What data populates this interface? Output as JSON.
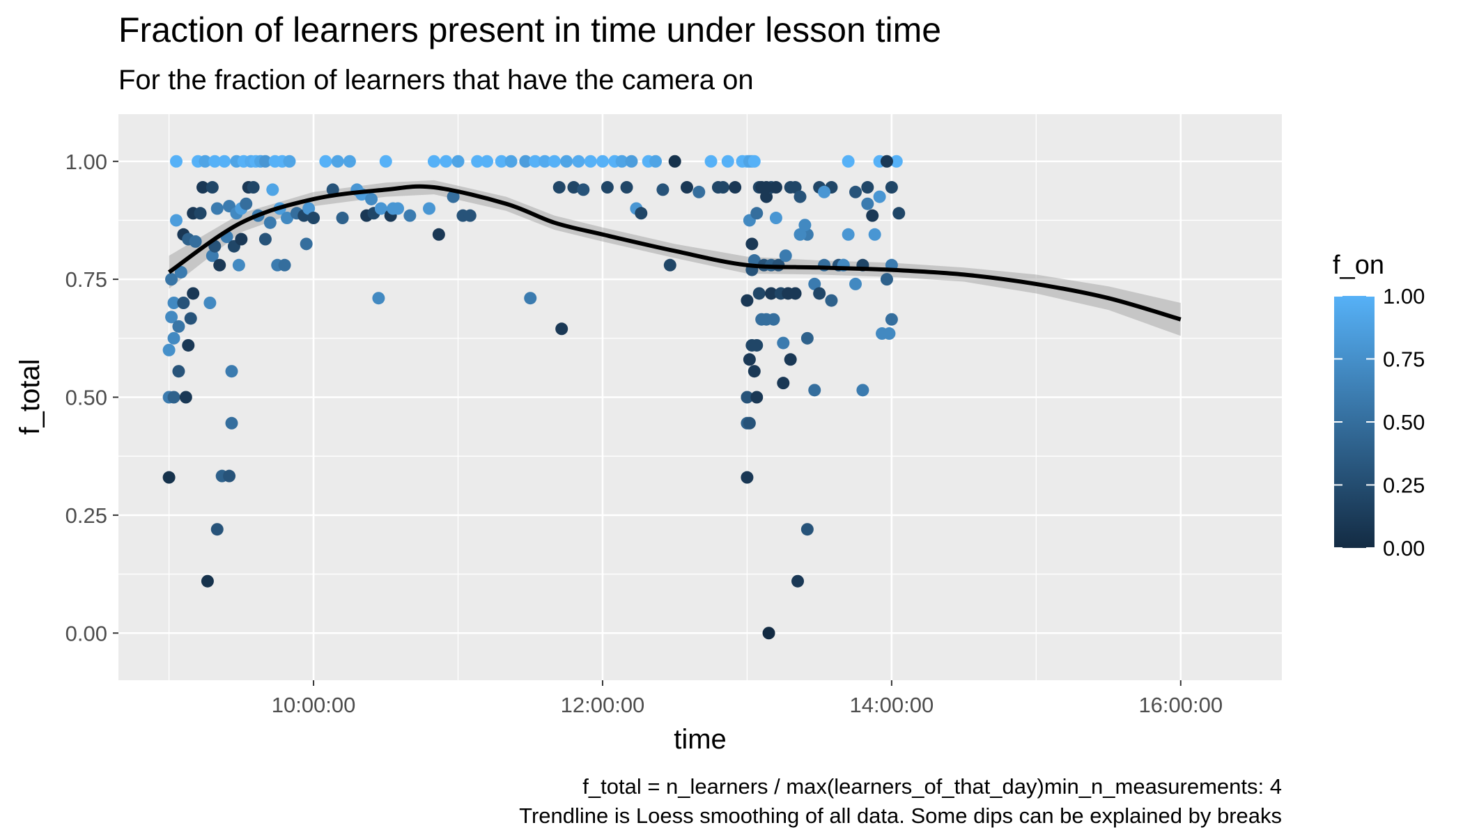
{
  "chart_data": {
    "type": "scatter",
    "title": "Fraction of learners present in time under lesson time",
    "subtitle": "For the fraction of learners that have the camera on",
    "xlabel": "time",
    "ylabel": "f_total",
    "xlim": [
      "08:39:00",
      "16:42:00"
    ],
    "ylim": [
      -0.1,
      1.1
    ],
    "x_ticks": [
      "10:00:00",
      "12:00:00",
      "14:00:00",
      "16:00:00"
    ],
    "y_ticks": [
      "0.00",
      "0.25",
      "0.50",
      "0.75",
      "1.00"
    ],
    "grid": true,
    "legend": {
      "title": "f_on",
      "position": "right",
      "ticks": [
        "0.00",
        "0.25",
        "0.50",
        "0.75",
        "1.00"
      ],
      "color_low": "#132B43",
      "color_high": "#56B1F7"
    },
    "caption": [
      "f_total = n_learners / max(learners_of_that_day)min_n_measurements: 4",
      "Trendline is Loess smoothing of all data. Some dips can be explained by breaks"
    ],
    "trend": {
      "name": "Loess",
      "x": [
        "09:00:00",
        "09:30:00",
        "10:00:00",
        "10:30:00",
        "10:50:00",
        "11:20:00",
        "11:40:00",
        "12:00:00",
        "12:30:00",
        "13:00:00",
        "13:30:00",
        "14:00:00",
        "14:30:00",
        "15:00:00",
        "15:30:00",
        "16:00:00"
      ],
      "y": [
        0.765,
        0.87,
        0.92,
        0.94,
        0.945,
        0.91,
        0.87,
        0.845,
        0.81,
        0.78,
        0.775,
        0.77,
        0.76,
        0.74,
        0.71,
        0.665
      ],
      "band": [
        0.035,
        0.02,
        0.015,
        0.015,
        0.015,
        0.015,
        0.015,
        0.015,
        0.015,
        0.018,
        0.015,
        0.015,
        0.015,
        0.02,
        0.025,
        0.035
      ]
    },
    "points": [
      {
        "x": "09:00:00",
        "y": 0.33,
        "f_on": 0.05
      },
      {
        "x": "09:00:00",
        "y": 0.5,
        "f_on": 0.6
      },
      {
        "x": "09:00:00",
        "y": 0.6,
        "f_on": 0.75
      },
      {
        "x": "09:01:00",
        "y": 0.67,
        "f_on": 0.7
      },
      {
        "x": "09:01:00",
        "y": 0.75,
        "f_on": 0.55
      },
      {
        "x": "09:02:00",
        "y": 0.7,
        "f_on": 0.7
      },
      {
        "x": "09:02:00",
        "y": 0.625,
        "f_on": 0.7
      },
      {
        "x": "09:02:00",
        "y": 0.5,
        "f_on": 0.4
      },
      {
        "x": "09:03:00",
        "y": 1.0,
        "f_on": 1.0
      },
      {
        "x": "09:03:00",
        "y": 0.875,
        "f_on": 0.85
      },
      {
        "x": "09:04:00",
        "y": 0.65,
        "f_on": 0.55
      },
      {
        "x": "09:04:00",
        "y": 0.555,
        "f_on": 0.3
      },
      {
        "x": "09:05:00",
        "y": 0.765,
        "f_on": 0.6
      },
      {
        "x": "09:06:00",
        "y": 0.7,
        "f_on": 0.3
      },
      {
        "x": "09:06:00",
        "y": 0.845,
        "f_on": 0.1
      },
      {
        "x": "09:07:00",
        "y": 0.5,
        "f_on": 0.1
      },
      {
        "x": "09:08:00",
        "y": 0.61,
        "f_on": 0.1
      },
      {
        "x": "09:08:00",
        "y": 0.835,
        "f_on": 0.4
      },
      {
        "x": "09:09:00",
        "y": 0.667,
        "f_on": 0.3
      },
      {
        "x": "09:10:00",
        "y": 0.72,
        "f_on": 0.1
      },
      {
        "x": "09:10:00",
        "y": 0.89,
        "f_on": 0.1
      },
      {
        "x": "09:11:00",
        "y": 0.83,
        "f_on": 0.5
      },
      {
        "x": "09:12:00",
        "y": 1.0,
        "f_on": 1.0
      },
      {
        "x": "09:13:00",
        "y": 0.89,
        "f_on": 0.2
      },
      {
        "x": "09:14:00",
        "y": 0.945,
        "f_on": 0.1
      },
      {
        "x": "09:15:00",
        "y": 1.0,
        "f_on": 0.9
      },
      {
        "x": "09:16:00",
        "y": 0.11,
        "f_on": 0.05
      },
      {
        "x": "09:17:00",
        "y": 0.7,
        "f_on": 0.7
      },
      {
        "x": "09:18:00",
        "y": 0.8,
        "f_on": 0.6
      },
      {
        "x": "09:18:00",
        "y": 0.945,
        "f_on": 0.2
      },
      {
        "x": "09:19:00",
        "y": 1.0,
        "f_on": 1.0
      },
      {
        "x": "09:19:00",
        "y": 0.82,
        "f_on": 0.3
      },
      {
        "x": "09:20:00",
        "y": 0.22,
        "f_on": 0.3
      },
      {
        "x": "09:20:00",
        "y": 0.9,
        "f_on": 0.6
      },
      {
        "x": "09:21:00",
        "y": 0.78,
        "f_on": 0.1
      },
      {
        "x": "09:22:00",
        "y": 0.333,
        "f_on": 0.4
      },
      {
        "x": "09:23:00",
        "y": 1.0,
        "f_on": 1.0
      },
      {
        "x": "09:24:00",
        "y": 0.84,
        "f_on": 0.6
      },
      {
        "x": "09:25:00",
        "y": 0.333,
        "f_on": 0.3
      },
      {
        "x": "09:25:00",
        "y": 0.905,
        "f_on": 0.6
      },
      {
        "x": "09:26:00",
        "y": 0.445,
        "f_on": 0.5
      },
      {
        "x": "09:26:00",
        "y": 0.555,
        "f_on": 0.6
      },
      {
        "x": "09:27:00",
        "y": 0.82,
        "f_on": 0.2
      },
      {
        "x": "09:28:00",
        "y": 1.0,
        "f_on": 0.9
      },
      {
        "x": "09:28:00",
        "y": 0.89,
        "f_on": 0.7
      },
      {
        "x": "09:29:00",
        "y": 0.78,
        "f_on": 0.7
      },
      {
        "x": "09:30:00",
        "y": 0.9,
        "f_on": 0.85
      },
      {
        "x": "09:30:00",
        "y": 0.835,
        "f_on": 0.1
      },
      {
        "x": "09:31:00",
        "y": 1.0,
        "f_on": 1.0
      },
      {
        "x": "09:32:00",
        "y": 0.91,
        "f_on": 0.5
      },
      {
        "x": "09:33:00",
        "y": 0.945,
        "f_on": 0.1
      },
      {
        "x": "09:34:00",
        "y": 1.0,
        "f_on": 0.95
      },
      {
        "x": "09:35:00",
        "y": 0.945,
        "f_on": 0.2
      },
      {
        "x": "09:36:00",
        "y": 1.0,
        "f_on": 1.0
      },
      {
        "x": "09:37:00",
        "y": 0.885,
        "f_on": 0.6
      },
      {
        "x": "09:38:00",
        "y": 1.0,
        "f_on": 0.9
      },
      {
        "x": "09:40:00",
        "y": 0.835,
        "f_on": 0.3
      },
      {
        "x": "09:40:00",
        "y": 1.0,
        "f_on": 0.8
      },
      {
        "x": "09:42:00",
        "y": 0.87,
        "f_on": 0.6
      },
      {
        "x": "09:43:00",
        "y": 0.94,
        "f_on": 0.9
      },
      {
        "x": "09:44:00",
        "y": 1.0,
        "f_on": 1.0
      },
      {
        "x": "09:45:00",
        "y": 0.78,
        "f_on": 0.6
      },
      {
        "x": "09:46:00",
        "y": 0.9,
        "f_on": 0.85
      },
      {
        "x": "09:47:00",
        "y": 1.0,
        "f_on": 1.0
      },
      {
        "x": "09:48:00",
        "y": 0.78,
        "f_on": 0.5
      },
      {
        "x": "09:49:00",
        "y": 0.88,
        "f_on": 0.7
      },
      {
        "x": "09:50:00",
        "y": 1.0,
        "f_on": 0.9
      },
      {
        "x": "09:53:00",
        "y": 0.89,
        "f_on": 0.5
      },
      {
        "x": "09:56:00",
        "y": 0.885,
        "f_on": 0.2
      },
      {
        "x": "09:57:00",
        "y": 0.825,
        "f_on": 0.5
      },
      {
        "x": "09:58:00",
        "y": 0.9,
        "f_on": 0.8
      },
      {
        "x": "10:00:00",
        "y": 0.88,
        "f_on": 0.2
      },
      {
        "x": "10:05:00",
        "y": 1.0,
        "f_on": 1.0
      },
      {
        "x": "10:08:00",
        "y": 0.94,
        "f_on": 0.3
      },
      {
        "x": "10:10:00",
        "y": 1.0,
        "f_on": 0.9
      },
      {
        "x": "10:12:00",
        "y": 0.88,
        "f_on": 0.4
      },
      {
        "x": "10:15:00",
        "y": 1.0,
        "f_on": 0.9
      },
      {
        "x": "10:18:00",
        "y": 0.94,
        "f_on": 0.8
      },
      {
        "x": "10:20:00",
        "y": 0.93,
        "f_on": 0.85
      },
      {
        "x": "10:22:00",
        "y": 0.885,
        "f_on": 0.1
      },
      {
        "x": "10:24:00",
        "y": 0.92,
        "f_on": 0.7
      },
      {
        "x": "10:25:00",
        "y": 0.89,
        "f_on": 0.2
      },
      {
        "x": "10:27:00",
        "y": 0.71,
        "f_on": 0.7
      },
      {
        "x": "10:28:00",
        "y": 0.9,
        "f_on": 0.8
      },
      {
        "x": "10:30:00",
        "y": 1.0,
        "f_on": 1.0
      },
      {
        "x": "10:32:00",
        "y": 0.885,
        "f_on": 0.1
      },
      {
        "x": "10:33:00",
        "y": 0.9,
        "f_on": 0.8
      },
      {
        "x": "10:35:00",
        "y": 0.9,
        "f_on": 0.8
      },
      {
        "x": "10:40:00",
        "y": 0.885,
        "f_on": 0.6
      },
      {
        "x": "10:48:00",
        "y": 0.9,
        "f_on": 0.8
      },
      {
        "x": "10:50:00",
        "y": 1.0,
        "f_on": 1.0
      },
      {
        "x": "10:52:00",
        "y": 0.845,
        "f_on": 0.1
      },
      {
        "x": "10:55:00",
        "y": 1.0,
        "f_on": 1.0
      },
      {
        "x": "10:58:00",
        "y": 0.925,
        "f_on": 0.5
      },
      {
        "x": "11:00:00",
        "y": 1.0,
        "f_on": 0.9
      },
      {
        "x": "11:02:00",
        "y": 0.885,
        "f_on": 0.3
      },
      {
        "x": "11:05:00",
        "y": 0.885,
        "f_on": 0.3
      },
      {
        "x": "11:08:00",
        "y": 1.0,
        "f_on": 1.0
      },
      {
        "x": "11:12:00",
        "y": 1.0,
        "f_on": 1.0
      },
      {
        "x": "11:18:00",
        "y": 1.0,
        "f_on": 1.0
      },
      {
        "x": "11:22:00",
        "y": 1.0,
        "f_on": 0.9
      },
      {
        "x": "11:28:00",
        "y": 1.0,
        "f_on": 0.85
      },
      {
        "x": "11:30:00",
        "y": 0.71,
        "f_on": 0.6
      },
      {
        "x": "11:32:00",
        "y": 1.0,
        "f_on": 1.0
      },
      {
        "x": "11:36:00",
        "y": 1.0,
        "f_on": 0.95
      },
      {
        "x": "11:40:00",
        "y": 1.0,
        "f_on": 1.0
      },
      {
        "x": "11:42:00",
        "y": 0.945,
        "f_on": 0.2
      },
      {
        "x": "11:43:00",
        "y": 0.645,
        "f_on": 0.1
      },
      {
        "x": "11:45:00",
        "y": 1.0,
        "f_on": 0.9
      },
      {
        "x": "11:48:00",
        "y": 0.945,
        "f_on": 0.2
      },
      {
        "x": "11:50:00",
        "y": 1.0,
        "f_on": 0.95
      },
      {
        "x": "11:52:00",
        "y": 0.94,
        "f_on": 0.3
      },
      {
        "x": "11:55:00",
        "y": 1.0,
        "f_on": 1.0
      },
      {
        "x": "12:00:00",
        "y": 1.0,
        "f_on": 1.0
      },
      {
        "x": "12:02:00",
        "y": 0.945,
        "f_on": 0.2
      },
      {
        "x": "12:05:00",
        "y": 1.0,
        "f_on": 1.0
      },
      {
        "x": "12:08:00",
        "y": 1.0,
        "f_on": 0.9
      },
      {
        "x": "12:10:00",
        "y": 0.945,
        "f_on": 0.2
      },
      {
        "x": "12:12:00",
        "y": 1.0,
        "f_on": 0.85
      },
      {
        "x": "12:14:00",
        "y": 0.9,
        "f_on": 0.8
      },
      {
        "x": "12:16:00",
        "y": 0.89,
        "f_on": 0.2
      },
      {
        "x": "12:19:00",
        "y": 1.0,
        "f_on": 1.0
      },
      {
        "x": "12:22:00",
        "y": 1.0,
        "f_on": 0.9
      },
      {
        "x": "12:25:00",
        "y": 0.94,
        "f_on": 0.3
      },
      {
        "x": "12:28:00",
        "y": 0.78,
        "f_on": 0.2
      },
      {
        "x": "12:30:00",
        "y": 1.0,
        "f_on": 0.05
      },
      {
        "x": "12:35:00",
        "y": 0.945,
        "f_on": 0.1
      },
      {
        "x": "12:40:00",
        "y": 0.935,
        "f_on": 0.5
      },
      {
        "x": "12:45:00",
        "y": 1.0,
        "f_on": 1.0
      },
      {
        "x": "12:48:00",
        "y": 0.945,
        "f_on": 0.2
      },
      {
        "x": "12:50:00",
        "y": 0.945,
        "f_on": 0.2
      },
      {
        "x": "12:52:00",
        "y": 1.0,
        "f_on": 1.0
      },
      {
        "x": "12:55:00",
        "y": 0.945,
        "f_on": 0.1
      },
      {
        "x": "12:58:00",
        "y": 1.0,
        "f_on": 1.0
      },
      {
        "x": "13:00:00",
        "y": 1.0,
        "f_on": 1.0
      },
      {
        "x": "13:02:00",
        "y": 1.0,
        "f_on": 0.9
      },
      {
        "x": "13:05:00",
        "y": 0.945,
        "f_on": 0.2
      },
      {
        "x": "13:08:00",
        "y": 0.925,
        "f_on": 0.1
      },
      {
        "x": "13:10:00",
        "y": 0.945,
        "f_on": 0.2
      },
      {
        "x": "13:12:00",
        "y": 0.945,
        "f_on": 0.1
      },
      {
        "x": "13:15:00",
        "y": 0.53,
        "f_on": 0.1
      },
      {
        "x": "13:18:00",
        "y": 0.945,
        "f_on": 0.2
      },
      {
        "x": "13:20:00",
        "y": 0.945,
        "f_on": 0.2
      },
      {
        "x": "13:22:00",
        "y": 0.925,
        "f_on": 0.3
      },
      {
        "x": "13:25:00",
        "y": 0.845,
        "f_on": 0.6
      },
      {
        "x": "13:28:00",
        "y": 0.74,
        "f_on": 0.6
      },
      {
        "x": "13:30:00",
        "y": 0.945,
        "f_on": 0.2
      },
      {
        "x": "13:32:00",
        "y": 0.78,
        "f_on": 0.5
      },
      {
        "x": "13:35:00",
        "y": 0.945,
        "f_on": 0.2
      },
      {
        "x": "13:38:00",
        "y": 0.78,
        "f_on": 0.3
      },
      {
        "x": "13:40:00",
        "y": 0.78,
        "f_on": 0.6
      },
      {
        "x": "13:42:00",
        "y": 0.845,
        "f_on": 0.8
      },
      {
        "x": "13:45:00",
        "y": 0.74,
        "f_on": 0.7
      },
      {
        "x": "13:48:00",
        "y": 0.78,
        "f_on": 0.2
      },
      {
        "x": "13:50:00",
        "y": 0.945,
        "f_on": 0.2
      },
      {
        "x": "13:52:00",
        "y": 0.885,
        "f_on": 0.1
      },
      {
        "x": "13:53:00",
        "y": 0.845,
        "f_on": 0.8
      },
      {
        "x": "13:55:00",
        "y": 1.0,
        "f_on": 1.0
      },
      {
        "x": "13:56:00",
        "y": 0.635,
        "f_on": 0.7
      },
      {
        "x": "13:58:00",
        "y": 0.75,
        "f_on": 0.4
      },
      {
        "x": "13:59:00",
        "y": 0.635,
        "f_on": 0.7
      },
      {
        "x": "14:00:00",
        "y": 0.665,
        "f_on": 0.5
      },
      {
        "x": "14:00:00",
        "y": 0.945,
        "f_on": 0.2
      },
      {
        "x": "14:02:00",
        "y": 1.0,
        "f_on": 1.0
      },
      {
        "x": "14:03:00",
        "y": 0.89,
        "f_on": 0.2
      }
    ],
    "points_pm": [
      {
        "x": "13:00:00",
        "y": 0.33,
        "f_on": 0.1
      },
      {
        "x": "13:00:00",
        "y": 0.445,
        "f_on": 0.4
      },
      {
        "x": "13:00:00",
        "y": 0.5,
        "f_on": 0.3
      },
      {
        "x": "13:00:00",
        "y": 0.705,
        "f_on": 0.1
      },
      {
        "x": "13:01:00",
        "y": 0.875,
        "f_on": 0.7
      },
      {
        "x": "13:01:00",
        "y": 1.0,
        "f_on": 0.9
      },
      {
        "x": "13:01:00",
        "y": 0.58,
        "f_on": 0.1
      },
      {
        "x": "13:01:00",
        "y": 0.445,
        "f_on": 0.3
      },
      {
        "x": "13:02:00",
        "y": 0.825,
        "f_on": 0.1
      },
      {
        "x": "13:02:00",
        "y": 0.77,
        "f_on": 0.3
      },
      {
        "x": "13:02:00",
        "y": 0.61,
        "f_on": 0.2
      },
      {
        "x": "13:03:00",
        "y": 0.555,
        "f_on": 0.1
      },
      {
        "x": "13:03:00",
        "y": 0.79,
        "f_on": 0.5
      },
      {
        "x": "13:03:00",
        "y": 1.0,
        "f_on": 1.0
      },
      {
        "x": "13:04:00",
        "y": 0.5,
        "f_on": 0.1
      },
      {
        "x": "13:04:00",
        "y": 0.61,
        "f_on": 0.2
      },
      {
        "x": "13:04:00",
        "y": 0.89,
        "f_on": 0.5
      },
      {
        "x": "13:05:00",
        "y": 0.72,
        "f_on": 0.2
      },
      {
        "x": "13:06:00",
        "y": 0.665,
        "f_on": 0.5
      },
      {
        "x": "13:06:00",
        "y": 0.945,
        "f_on": 0.1
      },
      {
        "x": "13:07:00",
        "y": 0.78,
        "f_on": 0.3
      },
      {
        "x": "13:08:00",
        "y": 0.665,
        "f_on": 0.5
      },
      {
        "x": "13:08:00",
        "y": 0.945,
        "f_on": 0.1
      },
      {
        "x": "13:09:00",
        "y": 0.0,
        "f_on": 0.0
      },
      {
        "x": "13:10:00",
        "y": 0.72,
        "f_on": 0.1
      },
      {
        "x": "13:10:00",
        "y": 0.78,
        "f_on": 0.4
      },
      {
        "x": "13:11:00",
        "y": 0.665,
        "f_on": 0.5
      },
      {
        "x": "13:12:00",
        "y": 0.88,
        "f_on": 0.8
      },
      {
        "x": "13:13:00",
        "y": 0.78,
        "f_on": 0.3
      },
      {
        "x": "13:14:00",
        "y": 0.72,
        "f_on": 0.2
      },
      {
        "x": "13:15:00",
        "y": 0.615,
        "f_on": 0.6
      },
      {
        "x": "13:16:00",
        "y": 0.8,
        "f_on": 0.6
      },
      {
        "x": "13:17:00",
        "y": 0.72,
        "f_on": 0.1
      },
      {
        "x": "13:18:00",
        "y": 0.58,
        "f_on": 0.1
      },
      {
        "x": "13:20:00",
        "y": 0.72,
        "f_on": 0.1
      },
      {
        "x": "13:21:00",
        "y": 0.11,
        "f_on": 0.1
      },
      {
        "x": "13:22:00",
        "y": 0.845,
        "f_on": 0.7
      },
      {
        "x": "13:24:00",
        "y": 0.865,
        "f_on": 0.7
      },
      {
        "x": "13:25:00",
        "y": 0.22,
        "f_on": 0.3
      },
      {
        "x": "13:25:00",
        "y": 0.625,
        "f_on": 0.4
      },
      {
        "x": "13:28:00",
        "y": 0.515,
        "f_on": 0.5
      },
      {
        "x": "13:30:00",
        "y": 0.72,
        "f_on": 0.2
      },
      {
        "x": "13:32:00",
        "y": 0.935,
        "f_on": 0.8
      },
      {
        "x": "13:35:00",
        "y": 0.705,
        "f_on": 0.4
      },
      {
        "x": "13:40:00",
        "y": 0.78,
        "f_on": 0.7
      },
      {
        "x": "13:42:00",
        "y": 1.0,
        "f_on": 1.0
      },
      {
        "x": "13:45:00",
        "y": 0.935,
        "f_on": 0.3
      },
      {
        "x": "13:48:00",
        "y": 0.515,
        "f_on": 0.6
      },
      {
        "x": "13:50:00",
        "y": 0.91,
        "f_on": 0.6
      },
      {
        "x": "13:55:00",
        "y": 0.925,
        "f_on": 0.8
      },
      {
        "x": "13:58:00",
        "y": 1.0,
        "f_on": 0.1
      },
      {
        "x": "14:00:00",
        "y": 0.78,
        "f_on": 0.6
      }
    ]
  }
}
